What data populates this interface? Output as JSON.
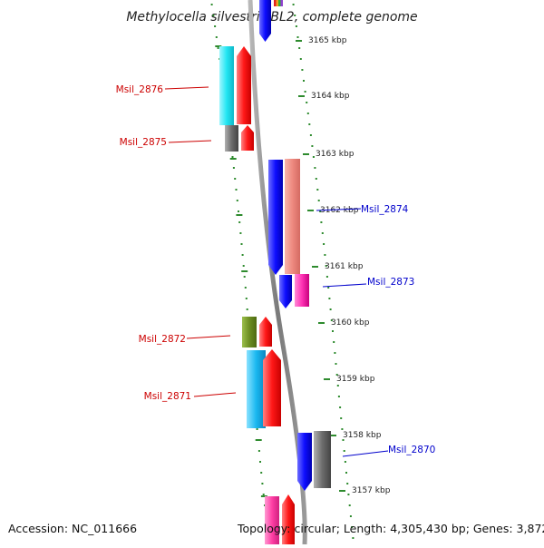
{
  "title": "Methylocella silvestris BL2, complete genome",
  "footer": {
    "accession": "Accession: NC_011666",
    "topology": "Topology: circular; Length: 4,305,430 bp; Genes: 3,872"
  },
  "colors": {
    "backbone": "#888888",
    "tick": "#2e8b2e",
    "forward_label": "#cc0000",
    "reverse_label": "#0000cc"
  },
  "kbp_ticks": [
    {
      "label": "3165 kbp",
      "kbp": 3165
    },
    {
      "label": "3164 kbp",
      "kbp": 3164
    },
    {
      "label": "3163 kbp",
      "kbp": 3163
    },
    {
      "label": "3162 kbp",
      "kbp": 3162
    },
    {
      "label": "3161 kbp",
      "kbp": 3161
    },
    {
      "label": "3160 kbp",
      "kbp": 3160
    },
    {
      "label": "3159 kbp",
      "kbp": 3159
    },
    {
      "label": "3158 kbp",
      "kbp": 3158
    },
    {
      "label": "3157 kbp",
      "kbp": 3157
    }
  ],
  "gene_labels": [
    {
      "name": "Msil_2876",
      "strand": "forward"
    },
    {
      "name": "Msil_2875",
      "strand": "forward"
    },
    {
      "name": "Msil_2874",
      "strand": "reverse"
    },
    {
      "name": "Msil_2873",
      "strand": "reverse"
    },
    {
      "name": "Msil_2872",
      "strand": "forward"
    },
    {
      "name": "Msil_2871",
      "strand": "forward"
    },
    {
      "name": "Msil_2870",
      "strand": "reverse"
    }
  ]
}
